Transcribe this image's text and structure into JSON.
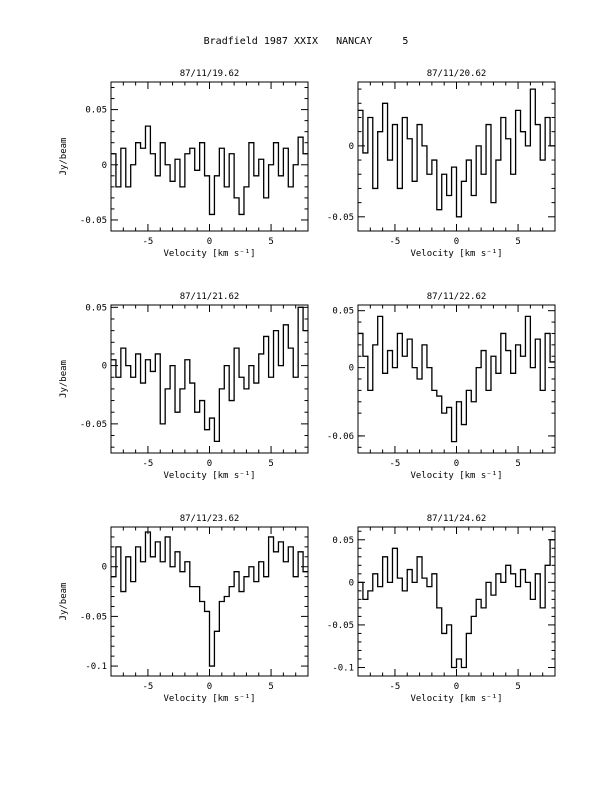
{
  "page": {
    "title": "Bradfield 1987 XXIX   NANCAY     5"
  },
  "chart_data": [
    {
      "type": "line",
      "title": "87/11/19.62",
      "xlabel": "Velocity [km s⁻¹]",
      "ylabel": "Jy/beam",
      "xlim": [
        -8,
        8
      ],
      "ylim": [
        -0.06,
        0.075
      ],
      "xticks": [
        -5,
        0,
        5
      ],
      "yticks": [
        -0.05,
        0,
        0.05
      ],
      "ytick_labels": [
        "-0.05",
        "0",
        "0.05"
      ],
      "x": [
        -8.0,
        -7.6,
        -7.2,
        -6.8,
        -6.4,
        -6.0,
        -5.6,
        -5.2,
        -4.8,
        -4.4,
        -4.0,
        -3.6,
        -3.2,
        -2.8,
        -2.4,
        -2.0,
        -1.6,
        -1.2,
        -0.8,
        -0.4,
        0.0,
        0.4,
        0.8,
        1.2,
        1.6,
        2.0,
        2.4,
        2.8,
        3.2,
        3.6,
        4.0,
        4.4,
        4.8,
        5.2,
        5.6,
        6.0,
        6.4,
        6.8,
        7.2,
        7.6
      ],
      "values": [
        0.01,
        -0.02,
        0.015,
        -0.02,
        0.0,
        0.02,
        0.015,
        0.035,
        0.01,
        -0.01,
        0.02,
        0.0,
        -0.015,
        0.005,
        -0.02,
        0.01,
        0.015,
        -0.005,
        0.02,
        -0.01,
        -0.045,
        -0.01,
        0.015,
        -0.02,
        0.01,
        -0.03,
        -0.045,
        -0.02,
        0.02,
        -0.01,
        0.005,
        -0.03,
        0.0,
        0.02,
        -0.01,
        0.015,
        -0.02,
        0.0,
        0.025,
        0.01
      ]
    },
    {
      "type": "line",
      "title": "87/11/20.62",
      "xlabel": "Velocity [km s⁻¹]",
      "ylabel": "",
      "xlim": [
        -8,
        8
      ],
      "ylim": [
        -0.06,
        0.045
      ],
      "xticks": [
        -5,
        0,
        5
      ],
      "yticks": [
        -0.05,
        0
      ],
      "ytick_labels": [
        "-0.05",
        "0"
      ],
      "x": [
        -8.0,
        -7.6,
        -7.2,
        -6.8,
        -6.4,
        -6.0,
        -5.6,
        -5.2,
        -4.8,
        -4.4,
        -4.0,
        -3.6,
        -3.2,
        -2.8,
        -2.4,
        -2.0,
        -1.6,
        -1.2,
        -0.8,
        -0.4,
        0.0,
        0.4,
        0.8,
        1.2,
        1.6,
        2.0,
        2.4,
        2.8,
        3.2,
        3.6,
        4.0,
        4.4,
        4.8,
        5.2,
        5.6,
        6.0,
        6.4,
        6.8,
        7.2,
        7.6
      ],
      "values": [
        0.025,
        -0.005,
        0.02,
        -0.03,
        0.01,
        0.03,
        -0.01,
        0.015,
        -0.03,
        0.02,
        0.005,
        -0.025,
        0.015,
        0.0,
        -0.02,
        -0.01,
        -0.045,
        -0.02,
        -0.035,
        -0.015,
        -0.05,
        -0.025,
        -0.01,
        -0.035,
        0.0,
        -0.02,
        0.015,
        -0.04,
        -0.01,
        0.02,
        0.005,
        -0.02,
        0.025,
        0.01,
        0.0,
        0.04,
        0.015,
        -0.01,
        0.02,
        0.0
      ]
    },
    {
      "type": "line",
      "title": "87/11/21.62",
      "xlabel": "Velocity [km s⁻¹]",
      "ylabel": "Jy/beam",
      "xlim": [
        -8,
        8
      ],
      "ylim": [
        -0.075,
        0.052
      ],
      "xticks": [
        -5,
        0,
        5
      ],
      "yticks": [
        -0.05,
        0,
        0.05
      ],
      "ytick_labels": [
        "-0.05",
        "0",
        "0.05"
      ],
      "x": [
        -8.0,
        -7.6,
        -7.2,
        -6.8,
        -6.4,
        -6.0,
        -5.6,
        -5.2,
        -4.8,
        -4.4,
        -4.0,
        -3.6,
        -3.2,
        -2.8,
        -2.4,
        -2.0,
        -1.6,
        -1.2,
        -0.8,
        -0.4,
        0.0,
        0.4,
        0.8,
        1.2,
        1.6,
        2.0,
        2.4,
        2.8,
        3.2,
        3.6,
        4.0,
        4.4,
        4.8,
        5.2,
        5.6,
        6.0,
        6.4,
        6.8,
        7.2,
        7.6
      ],
      "values": [
        0.005,
        -0.01,
        0.015,
        0.0,
        -0.01,
        0.01,
        -0.015,
        0.005,
        -0.005,
        0.01,
        -0.05,
        -0.02,
        0.0,
        -0.04,
        -0.02,
        0.005,
        -0.015,
        -0.04,
        -0.03,
        -0.055,
        -0.045,
        -0.065,
        -0.02,
        0.0,
        -0.03,
        0.015,
        -0.01,
        -0.02,
        0.0,
        -0.015,
        0.01,
        0.025,
        -0.01,
        0.03,
        0.0,
        0.035,
        0.015,
        -0.01,
        0.05,
        0.03
      ]
    },
    {
      "type": "line",
      "title": "87/11/22.62",
      "xlabel": "Velocity [km s⁻¹]",
      "ylabel": "",
      "xlim": [
        -8,
        8
      ],
      "ylim": [
        -0.075,
        0.055
      ],
      "xticks": [
        -5,
        0,
        5
      ],
      "yticks": [
        -0.06,
        0,
        0.05
      ],
      "ytick_labels": [
        "-0.06",
        "0",
        "0.05"
      ],
      "x": [
        -8.0,
        -7.6,
        -7.2,
        -6.8,
        -6.4,
        -6.0,
        -5.6,
        -5.2,
        -4.8,
        -4.4,
        -4.0,
        -3.6,
        -3.2,
        -2.8,
        -2.4,
        -2.0,
        -1.6,
        -1.2,
        -0.8,
        -0.4,
        0.0,
        0.4,
        0.8,
        1.2,
        1.6,
        2.0,
        2.4,
        2.8,
        3.2,
        3.6,
        4.0,
        4.4,
        4.8,
        5.2,
        5.6,
        6.0,
        6.4,
        6.8,
        7.2,
        7.6
      ],
      "values": [
        0.03,
        0.01,
        -0.02,
        0.02,
        0.045,
        -0.005,
        0.015,
        0.0,
        0.03,
        0.01,
        0.025,
        0.0,
        -0.01,
        0.02,
        0.0,
        -0.02,
        -0.025,
        -0.04,
        -0.035,
        -0.065,
        -0.03,
        -0.05,
        -0.02,
        -0.03,
        0.0,
        0.015,
        -0.02,
        0.01,
        -0.005,
        0.03,
        0.015,
        -0.005,
        0.02,
        0.01,
        0.045,
        0.0,
        0.025,
        -0.02,
        0.03,
        0.005
      ]
    },
    {
      "type": "line",
      "title": "87/11/23.62",
      "xlabel": "Velocity [km s⁻¹]",
      "ylabel": "Jy/beam",
      "xlim": [
        -8,
        8
      ],
      "ylim": [
        -0.11,
        0.04
      ],
      "xticks": [
        -5,
        0,
        5
      ],
      "yticks": [
        -0.1,
        -0.05,
        0
      ],
      "ytick_labels": [
        "-0.1",
        "-0.05",
        "0"
      ],
      "x": [
        -8.0,
        -7.6,
        -7.2,
        -6.8,
        -6.4,
        -6.0,
        -5.6,
        -5.2,
        -4.8,
        -4.4,
        -4.0,
        -3.6,
        -3.2,
        -2.8,
        -2.4,
        -2.0,
        -1.6,
        -1.2,
        -0.8,
        -0.4,
        0.0,
        0.4,
        0.8,
        1.2,
        1.6,
        2.0,
        2.4,
        2.8,
        3.2,
        3.6,
        4.0,
        4.4,
        4.8,
        5.2,
        5.6,
        6.0,
        6.4,
        6.8,
        7.2,
        7.6
      ],
      "values": [
        -0.01,
        0.02,
        -0.025,
        0.01,
        -0.015,
        0.02,
        0.005,
        0.035,
        0.01,
        0.025,
        0.005,
        0.03,
        0.0,
        0.015,
        -0.005,
        0.005,
        -0.02,
        -0.02,
        -0.035,
        -0.045,
        -0.1,
        -0.065,
        -0.035,
        -0.03,
        -0.02,
        -0.005,
        -0.025,
        -0.01,
        0.0,
        -0.015,
        0.005,
        -0.01,
        0.03,
        0.015,
        0.025,
        0.005,
        0.02,
        -0.01,
        0.015,
        -0.005
      ]
    },
    {
      "type": "line",
      "title": "87/11/24.62",
      "xlabel": "Velocity [km s⁻¹]",
      "ylabel": "",
      "xlim": [
        -8,
        8
      ],
      "ylim": [
        -0.11,
        0.065
      ],
      "xticks": [
        -5,
        0,
        5
      ],
      "yticks": [
        -0.1,
        -0.05,
        0,
        0.05
      ],
      "ytick_labels": [
        "-0.1",
        "-0.05",
        "0",
        "0.05"
      ],
      "x": [
        -8.0,
        -7.6,
        -7.2,
        -6.8,
        -6.4,
        -6.0,
        -5.6,
        -5.2,
        -4.8,
        -4.4,
        -4.0,
        -3.6,
        -3.2,
        -2.8,
        -2.4,
        -2.0,
        -1.6,
        -1.2,
        -0.8,
        -0.4,
        0.0,
        0.4,
        0.8,
        1.2,
        1.6,
        2.0,
        2.4,
        2.8,
        3.2,
        3.6,
        4.0,
        4.4,
        4.8,
        5.2,
        5.6,
        6.0,
        6.4,
        6.8,
        7.2,
        7.6
      ],
      "values": [
        0.0,
        -0.02,
        -0.01,
        0.01,
        -0.005,
        0.03,
        0.0,
        0.04,
        0.005,
        -0.01,
        0.015,
        0.0,
        0.03,
        0.005,
        -0.005,
        0.01,
        -0.03,
        -0.06,
        -0.05,
        -0.1,
        -0.09,
        -0.1,
        -0.06,
        -0.04,
        -0.02,
        -0.03,
        0.0,
        -0.015,
        0.01,
        0.0,
        0.02,
        0.01,
        -0.005,
        0.015,
        0.0,
        -0.02,
        0.01,
        -0.03,
        0.02,
        0.05
      ]
    }
  ]
}
